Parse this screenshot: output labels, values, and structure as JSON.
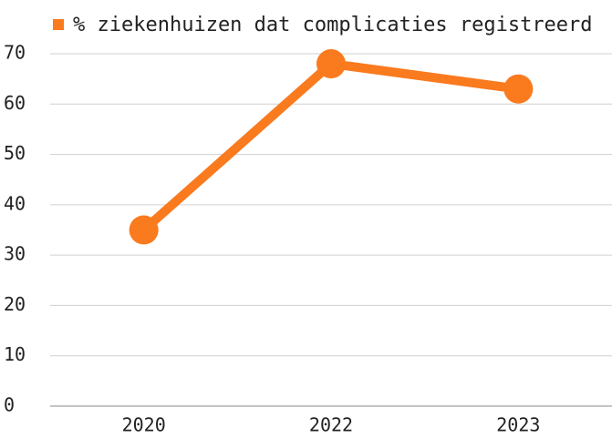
{
  "chart_data": {
    "type": "line",
    "categories": [
      "2020",
      "2022",
      "2023"
    ],
    "series": [
      {
        "name": "% ziekenhuizen dat complicaties registreerd",
        "color": "#fa7a1e",
        "values": [
          35,
          68,
          63
        ]
      }
    ],
    "ylim": [
      0,
      70
    ],
    "yticks": [
      0,
      10,
      20,
      30,
      40,
      50,
      60,
      70
    ],
    "grid": true,
    "legend": "top"
  }
}
